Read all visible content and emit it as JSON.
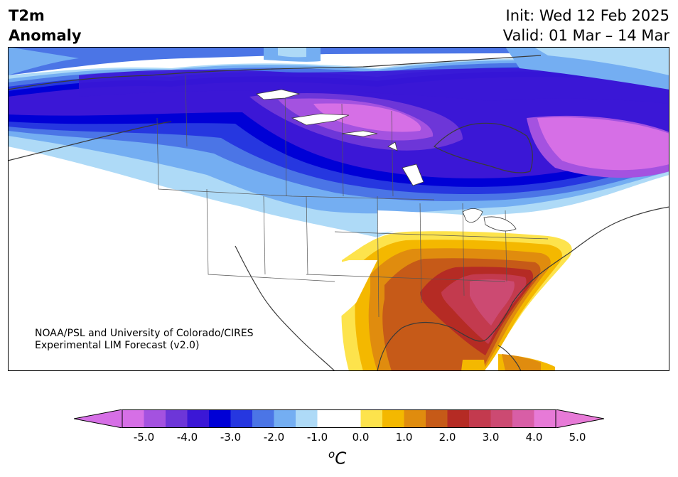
{
  "header": {
    "title_line1": "T2m",
    "title_line2": "Anomaly",
    "init": "Init: Wed 12 Feb 2025",
    "valid": "Valid: 01 Mar – 14 Mar"
  },
  "credit": {
    "line1": "NOAA/PSL and University of Colorado/CIRES",
    "line2": "Experimental LIM Forecast (v2.0)"
  },
  "colorbar": {
    "unit_base": "C",
    "unit_sup": "o",
    "tick_labels": [
      "-5.0",
      "-4.0",
      "-3.0",
      "-2.0",
      "-1.0",
      "0.0",
      "1.0",
      "2.0",
      "3.0",
      "4.0",
      "5.0"
    ],
    "colors": [
      "#d66fe6",
      "#a452e0",
      "#6d36d8",
      "#3b17d6",
      "#0000d6",
      "#2637e0",
      "#4b75e6",
      "#74aef2",
      "#aedaf7",
      "#ffffff",
      "#ffffff",
      "#fde34c",
      "#f4b800",
      "#e08c0e",
      "#c65a18",
      "#b52b24",
      "#c33a4e",
      "#cc4a72",
      "#d85ea6",
      "#e77ad7"
    ],
    "under_color": "#d66fe6",
    "over_color": "#e77ad7"
  }
}
